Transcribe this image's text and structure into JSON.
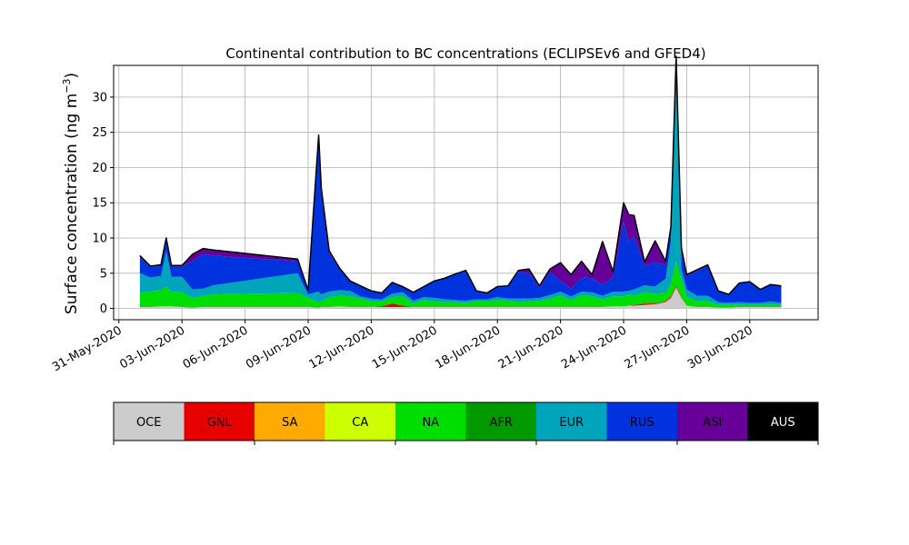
{
  "chart_data": {
    "type": "area",
    "title": "Continental contribution to BC concentrations (ECLIPSEv6 and GFED4)",
    "ylabel_main": "Surface concentration (ng m",
    "ylabel_sup": "−3",
    "ylabel_close": ")",
    "xlabel": "",
    "grid": true,
    "legend_placement": "bottom",
    "x_start": "2020-05-31",
    "xlim": [
      "2020-05-30T18:00",
      "2020-07-03T06:00"
    ],
    "ylim": [
      -1.6,
      34.5
    ],
    "yticks": [
      0,
      5,
      10,
      15,
      20,
      25,
      30
    ],
    "xticks": [
      {
        "date": "2020-05-31",
        "label": "31-May-2020"
      },
      {
        "date": "2020-06-03",
        "label": "03-Jun-2020"
      },
      {
        "date": "2020-06-06",
        "label": "06-Jun-2020"
      },
      {
        "date": "2020-06-09",
        "label": "09-Jun-2020"
      },
      {
        "date": "2020-06-12",
        "label": "12-Jun-2020"
      },
      {
        "date": "2020-06-15",
        "label": "15-Jun-2020"
      },
      {
        "date": "2020-06-18",
        "label": "18-Jun-2020"
      },
      {
        "date": "2020-06-21",
        "label": "21-Jun-2020"
      },
      {
        "date": "2020-06-24",
        "label": "24-Jun-2020"
      },
      {
        "date": "2020-06-27",
        "label": "27-Jun-2020"
      },
      {
        "date": "2020-06-30",
        "label": "30-Jun-2020"
      }
    ],
    "x": [
      "2020-06-01T00:00",
      "2020-06-01T12:00",
      "2020-06-02T00:00",
      "2020-06-02T06:00",
      "2020-06-02T12:00",
      "2020-06-03T00:00",
      "2020-06-03T12:00",
      "2020-06-04T00:00",
      "2020-06-04T12:00",
      "2020-06-08T12:00",
      "2020-06-09T00:00",
      "2020-06-09T12:00",
      "2020-06-09T15:00",
      "2020-06-10T00:00",
      "2020-06-10T12:00",
      "2020-06-11T00:00",
      "2020-06-11T12:00",
      "2020-06-12T00:00",
      "2020-06-12T12:00",
      "2020-06-13T00:00",
      "2020-06-13T12:00",
      "2020-06-14T00:00",
      "2020-06-14T12:00",
      "2020-06-15T00:00",
      "2020-06-15T12:00",
      "2020-06-16T00:00",
      "2020-06-16T12:00",
      "2020-06-17T00:00",
      "2020-06-17T12:00",
      "2020-06-18T00:00",
      "2020-06-18T12:00",
      "2020-06-19T00:00",
      "2020-06-19T12:00",
      "2020-06-20T00:00",
      "2020-06-20T12:00",
      "2020-06-21T00:00",
      "2020-06-21T12:00",
      "2020-06-22T00:00",
      "2020-06-22T12:00",
      "2020-06-23T00:00",
      "2020-06-23T12:00",
      "2020-06-24T00:00",
      "2020-06-24T06:00",
      "2020-06-24T12:00",
      "2020-06-25T00:00",
      "2020-06-25T12:00",
      "2020-06-26T00:00",
      "2020-06-26T06:00",
      "2020-06-26T12:00",
      "2020-06-26T18:00",
      "2020-06-27T00:00",
      "2020-06-27T12:00",
      "2020-06-28T00:00",
      "2020-06-28T12:00",
      "2020-06-29T00:00",
      "2020-06-29T12:00",
      "2020-06-30T00:00",
      "2020-06-30T12:00",
      "2020-07-01T00:00",
      "2020-07-01T12:00"
    ],
    "series": [
      {
        "name": "OCE",
        "color": "#cccccc",
        "values": [
          0.2,
          0.2,
          0.3,
          0.3,
          0.3,
          0.2,
          0.1,
          0.2,
          0.2,
          0.2,
          0.2,
          0.1,
          0.2,
          0.2,
          0.3,
          0.2,
          0.2,
          0.2,
          0.2,
          0.2,
          0.2,
          0.2,
          0.2,
          0.2,
          0.2,
          0.2,
          0.2,
          0.2,
          0.2,
          0.2,
          0.2,
          0.2,
          0.2,
          0.2,
          0.2,
          0.2,
          0.2,
          0.2,
          0.2,
          0.2,
          0.3,
          0.3,
          0.4,
          0.4,
          0.5,
          0.6,
          0.9,
          1.5,
          3.0,
          1.5,
          0.4,
          0.2,
          0.2,
          0.1,
          0.1,
          0.2,
          0.2,
          0.2,
          0.2,
          0.2
        ]
      },
      {
        "name": "GNL",
        "color": "#e60000",
        "values": [
          0,
          0,
          0,
          0,
          0,
          0,
          0,
          0,
          0,
          0,
          0,
          0,
          0,
          0,
          0,
          0,
          0,
          0,
          0.1,
          0.5,
          0.2,
          0,
          0,
          0,
          0,
          0,
          0,
          0,
          0,
          0,
          0,
          0,
          0,
          0,
          0,
          0,
          0,
          0,
          0,
          0,
          0,
          0,
          0,
          0.1,
          0.2,
          0.1,
          0.1,
          0.2,
          0.2,
          0.1,
          0,
          0,
          0,
          0,
          0,
          0,
          0,
          0,
          0,
          0
        ]
      },
      {
        "name": "SA",
        "color": "#ffaa00",
        "values": [
          0,
          0,
          0,
          0,
          0,
          0,
          0,
          0,
          0,
          0,
          0,
          0,
          0,
          0,
          0,
          0,
          0,
          0,
          0,
          0,
          0,
          0,
          0,
          0,
          0,
          0,
          0,
          0,
          0,
          0,
          0,
          0,
          0,
          0,
          0,
          0,
          0,
          0,
          0,
          0,
          0,
          0,
          0,
          0,
          0,
          0,
          0,
          0,
          0,
          0,
          0,
          0,
          0,
          0,
          0,
          0,
          0,
          0,
          0,
          0
        ]
      },
      {
        "name": "CA",
        "color": "#ccff00",
        "values": [
          0,
          0,
          0,
          0,
          0,
          0,
          0,
          0,
          0,
          0,
          0,
          0,
          0,
          0,
          0,
          0,
          0,
          0,
          0,
          0,
          0,
          0,
          0,
          0,
          0,
          0,
          0,
          0,
          0,
          0,
          0,
          0,
          0,
          0,
          0,
          0,
          0,
          0,
          0,
          0,
          0,
          0,
          0,
          0,
          0,
          0,
          0,
          0,
          0,
          0,
          0,
          0,
          0,
          0,
          0,
          0,
          0,
          0,
          0,
          0
        ]
      },
      {
        "name": "NA",
        "color": "#00dd00",
        "values": [
          2.0,
          2.2,
          2.3,
          2.8,
          2.0,
          2.1,
          1.4,
          1.6,
          1.8,
          2.0,
          1.3,
          0.8,
          0.8,
          1.4,
          1.5,
          1.5,
          1.2,
          0.8,
          0.7,
          0.9,
          1.3,
          0.5,
          1.0,
          0.8,
          0.7,
          0.7,
          0.6,
          0.8,
          0.8,
          1.0,
          0.9,
          0.7,
          0.8,
          0.9,
          1.2,
          1.6,
          1.0,
          1.7,
          1.5,
          1.1,
          1.4,
          1.4,
          1.6,
          1.3,
          1.6,
          1.4,
          1.2,
          1.8,
          3.5,
          2.5,
          1.3,
          0.8,
          0.8,
          0.4,
          0.4,
          0.4,
          0.3,
          0.3,
          0.4,
          0.3
        ]
      },
      {
        "name": "AFR",
        "color": "#009900",
        "values": [
          0,
          0,
          0,
          0,
          0,
          0,
          0,
          0,
          0,
          0,
          0,
          0,
          0,
          0,
          0,
          0,
          0,
          0,
          0,
          0,
          0,
          0,
          0,
          0,
          0,
          0,
          0,
          0,
          0,
          0,
          0,
          0,
          0,
          0,
          0,
          0,
          0,
          0,
          0,
          0,
          0,
          0,
          0,
          0,
          0,
          0,
          0,
          0,
          0,
          0,
          0,
          0,
          0,
          0,
          0,
          0,
          0,
          0,
          0,
          0
        ]
      },
      {
        "name": "EUR",
        "color": "#00a5bb",
        "values": [
          2.8,
          2.0,
          2.0,
          5.0,
          2.2,
          2.2,
          1.2,
          1.0,
          1.3,
          2.8,
          0.5,
          1.5,
          1.0,
          0.8,
          0.8,
          0.8,
          0.3,
          0.4,
          0.3,
          0.5,
          0.6,
          0.4,
          0.4,
          0.5,
          0.4,
          0.3,
          0.3,
          0.3,
          0.3,
          0.4,
          0.3,
          0.5,
          0.4,
          0.4,
          0.5,
          0.6,
          0.5,
          0.5,
          0.6,
          0.5,
          0.7,
          0.7,
          0.5,
          0.9,
          1.0,
          1.0,
          2.0,
          6.0,
          26.0,
          1.5,
          1.0,
          0.8,
          0.8,
          0.4,
          0.3,
          0.3,
          0.3,
          0.3,
          0.4,
          0.3
        ]
      },
      {
        "name": "RUS",
        "color": "#0033dd",
        "values": [
          2.2,
          1.5,
          1.4,
          1.6,
          1.5,
          1.5,
          4.0,
          4.9,
          4.2,
          1.7,
          0.6,
          22.0,
          15.0,
          5.5,
          3.0,
          1.4,
          1.5,
          1.1,
          0.9,
          1.6,
          0.8,
          1.2,
          1.5,
          2.4,
          3.0,
          3.6,
          4.2,
          1.1,
          0.8,
          1.4,
          1.7,
          3.8,
          3.6,
          1.4,
          3.3,
          1.5,
          1.1,
          2.0,
          2.0,
          1.6,
          2.0,
          10.0,
          7.0,
          7.5,
          2.8,
          3.5,
          2.0,
          2.0,
          3.0,
          2.5,
          2.0,
          3.5,
          4.2,
          1.6,
          1.2,
          2.7,
          3.0,
          1.9,
          2.4,
          2.4
        ]
      },
      {
        "name": "ASI",
        "color": "#660099",
        "values": [
          0.3,
          0.1,
          0.2,
          0.3,
          0.1,
          0.1,
          1.0,
          0.8,
          0.8,
          0.3,
          0,
          0.2,
          0.1,
          0.3,
          0.1,
          0,
          0,
          0,
          0,
          0,
          0,
          0,
          0,
          0,
          0,
          0.1,
          0.1,
          0.1,
          0.1,
          0.1,
          0.1,
          0.2,
          0.6,
          0.3,
          0.4,
          2.6,
          2.0,
          2.3,
          0.5,
          6.1,
          0.8,
          2.6,
          3.8,
          3.0,
          0.5,
          3.0,
          0.5,
          0.1,
          0.1,
          0.5,
          0.1,
          0.2,
          0.2,
          0,
          0,
          0,
          0,
          0,
          0,
          0
        ]
      },
      {
        "name": "AUS",
        "color": "#000000",
        "values": [
          0,
          0,
          0,
          0,
          0,
          0,
          0,
          0,
          0,
          0,
          0,
          0,
          0,
          0,
          0,
          0,
          0,
          0,
          0,
          0,
          0,
          0,
          0,
          0,
          0,
          0,
          0,
          0,
          0,
          0,
          0,
          0,
          0,
          0,
          0,
          0,
          0,
          0,
          0,
          0,
          0,
          0,
          0,
          0,
          0,
          0,
          0,
          0,
          0,
          0,
          0,
          0,
          0,
          0,
          0,
          0,
          0,
          0,
          0,
          0
        ]
      }
    ]
  }
}
